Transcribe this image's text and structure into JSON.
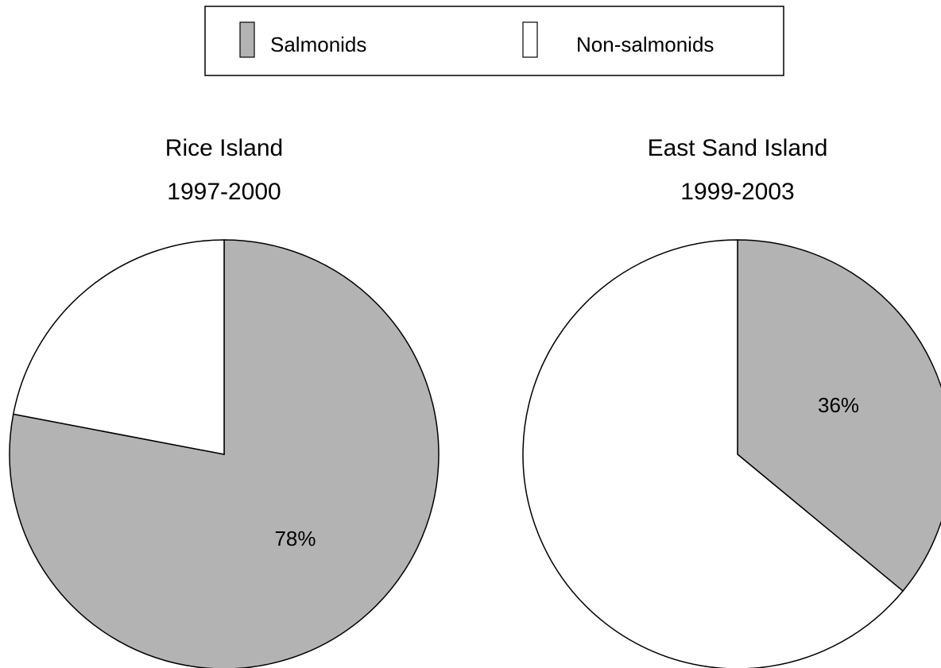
{
  "chart_data": [
    {
      "type": "pie",
      "title": "Rice Island",
      "subtitle": "1997-2000",
      "categories": [
        "Salmonids",
        "Non-salmonids"
      ],
      "values": [
        78,
        22
      ],
      "value_labels": [
        "78%",
        null
      ],
      "colors": [
        "#b3b3b3",
        "#ffffff"
      ]
    },
    {
      "type": "pie",
      "title": "East Sand Island",
      "subtitle": "1999-2003",
      "categories": [
        "Salmonids",
        "Non-salmonids"
      ],
      "values": [
        36,
        64
      ],
      "value_labels": [
        "36%",
        null
      ],
      "colors": [
        "#b3b3b3",
        "#ffffff"
      ]
    }
  ]
}
